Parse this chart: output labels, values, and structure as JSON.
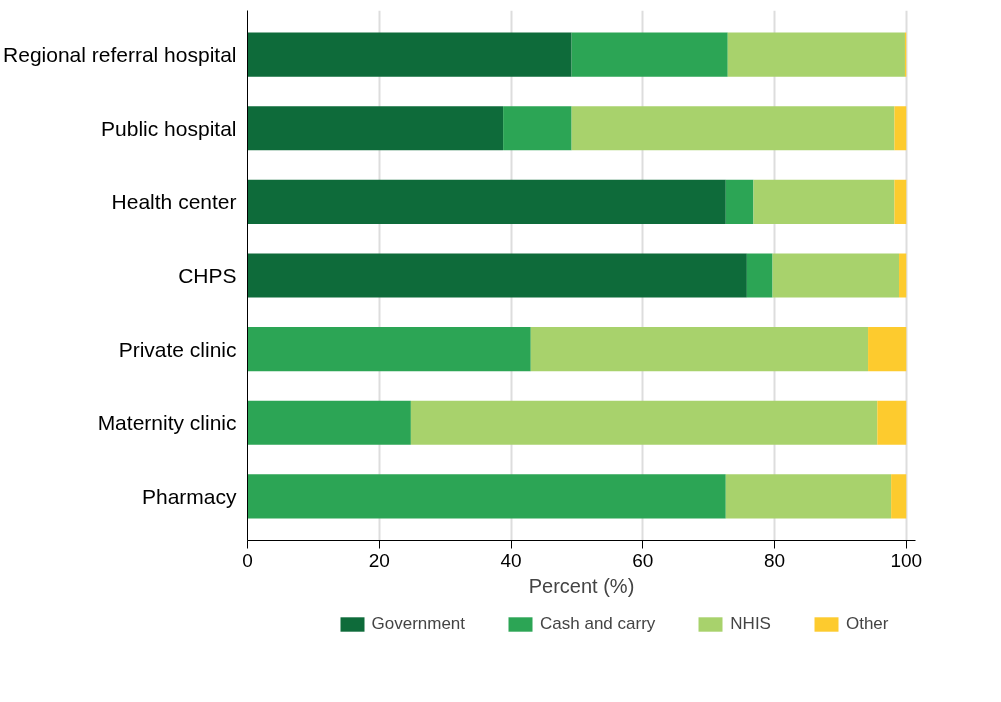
{
  "chart_data": {
    "type": "bar",
    "orientation": "horizontal",
    "stacked": true,
    "xlabel": "Percent (%)",
    "categories": [
      "Regional referral hospital",
      "Public hospital",
      "Health center",
      "CHPS",
      "Private clinic",
      "Maternity clinic",
      "Pharmacy"
    ],
    "series": [
      {
        "name": "Government",
        "color": "#0e6b3a",
        "values": [
          49.2,
          38.8,
          72.6,
          75.8,
          0,
          0,
          0
        ]
      },
      {
        "name": "Cash and carry",
        "color": "#2ca555",
        "values": [
          23.7,
          10.4,
          4.2,
          3.9,
          43.0,
          24.8,
          72.6
        ]
      },
      {
        "name": "NHIS",
        "color": "#a8d26c",
        "values": [
          26.9,
          49.0,
          21.4,
          19.2,
          51.2,
          70.8,
          25.1
        ]
      },
      {
        "name": "Other",
        "color": "#fdcb2e",
        "values": [
          0.2,
          1.8,
          1.8,
          1.1,
          5.8,
          4.4,
          2.3
        ]
      }
    ],
    "xlim": [
      0,
      101.4
    ],
    "xticks": [
      0,
      20,
      40,
      60,
      80,
      100
    ],
    "grid": "x",
    "legend": "bottom"
  }
}
